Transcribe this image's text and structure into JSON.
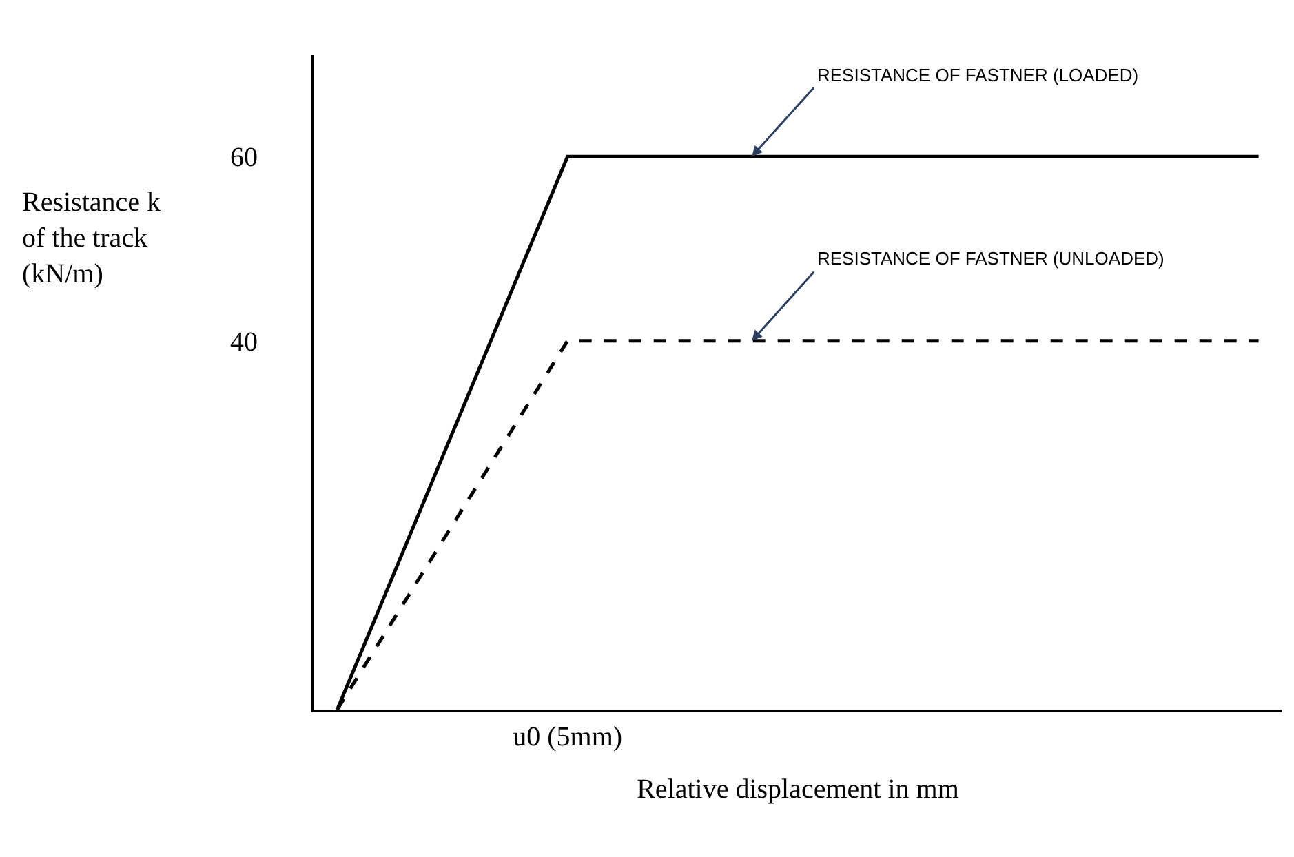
{
  "chart_data": {
    "type": "line",
    "xlabel": "Relative displacement in mm",
    "ylabel": "Resistance k\nof the track\n(kN/m)",
    "categories": [
      null,
      null,
      null,
      null,
      null,
      "u0 (5mm)",
      null,
      null,
      null,
      null,
      null,
      null,
      null,
      null,
      null,
      null,
      null,
      null,
      null,
      null,
      null
    ],
    "ylim": [
      0,
      71
    ],
    "yticks": [
      40,
      60
    ],
    "series": [
      {
        "color": "#000000",
        "line_style": "solid",
        "values": [
          0,
          null,
          null,
          null,
          null,
          60,
          null,
          null,
          null,
          null,
          null,
          null,
          null,
          null,
          null,
          null,
          null,
          null,
          null,
          null,
          60
        ]
      },
      {
        "color": "#000000",
        "line_style": "dashed",
        "values": [
          0,
          null,
          null,
          null,
          null,
          40,
          null,
          null,
          null,
          null,
          null,
          null,
          null,
          null,
          null,
          null,
          null,
          null,
          null,
          null,
          40
        ]
      }
    ],
    "annotations": [
      "RESISTANCE OF FASTNER (LOADED)",
      "RESISTANCE OF FASTNER (UNLOADED)"
    ],
    "legend": false,
    "marker": "none"
  }
}
